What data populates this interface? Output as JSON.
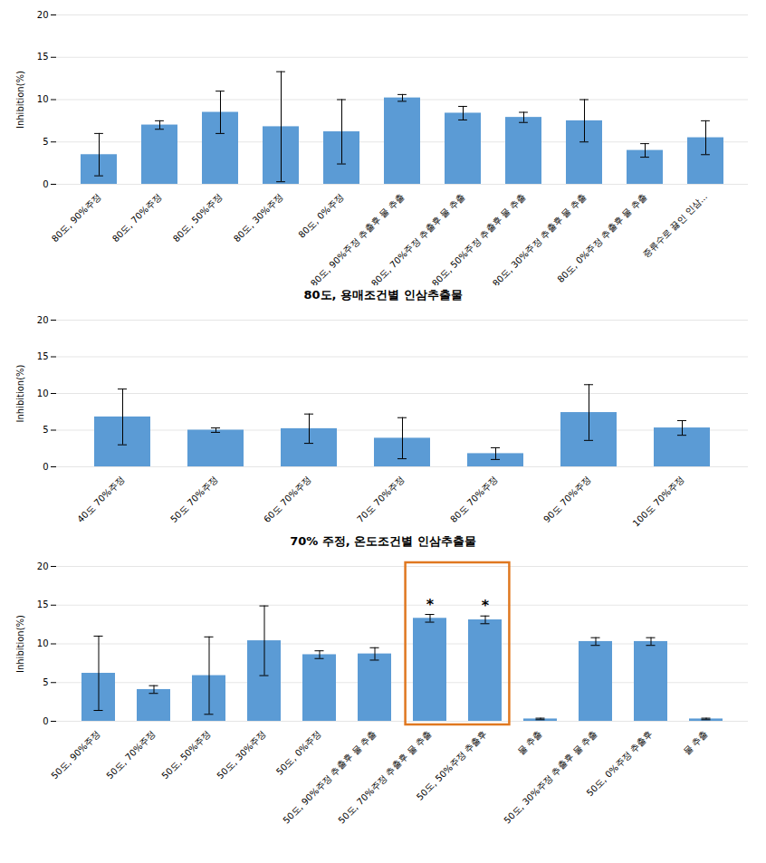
{
  "chart_data": [
    {
      "type": "bar",
      "title": "80도, 용매조건별 인삼추출물",
      "categories": [
        "80도, 90%주정",
        "80도, 70%주정",
        "80도, 50%주정",
        "80도, 30%주정",
        "80도, 0%주정",
        "80도, 90%주정 추출후 물 추출",
        "80도, 70%주정 추출후 물 추출",
        "80도, 50%주정 추출후 물 추출",
        "80도, 30%주정 추출후 물 추출",
        "80도, 0%주정 추출후 물 추출",
        "증류수로 끓인 인삼..."
      ],
      "values": [
        3.5,
        7.0,
        8.5,
        6.8,
        6.2,
        10.2,
        8.4,
        7.9,
        7.5,
        4.0,
        5.5
      ],
      "errors": [
        2.5,
        0.5,
        2.5,
        6.5,
        3.8,
        0.4,
        0.8,
        0.6,
        2.5,
        0.8,
        2.0
      ],
      "color": "#5B9BD5",
      "ylim": [
        0,
        20
      ],
      "yticks": [
        0,
        5,
        10,
        15,
        20
      ],
      "ylabel": "Inhibition(%)",
      "grid": true
    },
    {
      "type": "bar",
      "title": "70% 주정, 온도조건별 인삼추출물",
      "categories": [
        "40도 70%주정",
        "50도 70%주정",
        "60도 70%주정",
        "70도 70%주정",
        "80도 70%주정",
        "90도 70%주정",
        "100도 70%주정"
      ],
      "values": [
        6.8,
        5.0,
        5.2,
        3.9,
        1.8,
        7.4,
        5.3
      ],
      "errors": [
        3.8,
        0.3,
        2.0,
        2.8,
        0.8,
        3.8,
        1.0
      ],
      "color": "#5B9BD5",
      "ylim": [
        0,
        20
      ],
      "yticks": [
        0,
        5,
        10,
        15,
        20
      ],
      "ylabel": "Inhibition(%)",
      "grid": true
    },
    {
      "type": "bar",
      "categories": [
        "50도, 90%주정",
        "50도, 70%주정",
        "50도, 50%주정",
        "50도, 30%주정",
        "50도, 0%주정",
        "50도, 90%주정 추출후 물 추출",
        "50도, 70%주정 추출후 물 추출",
        "50도, 50%주정 추출후",
        "물 추출",
        "50도, 30%주정 추출후 물 추출",
        "50도, 0%주정 추출후",
        "물 추출"
      ],
      "values": [
        6.2,
        4.1,
        5.9,
        10.4,
        8.6,
        8.7,
        13.3,
        13.1,
        0.3,
        10.3,
        10.3,
        0.3
      ],
      "errors": [
        4.8,
        0.5,
        5.0,
        4.5,
        0.5,
        0.8,
        0.5,
        0.5,
        0.1,
        0.5,
        0.5,
        0.1
      ],
      "color": "#5B9BD5",
      "annotations": [
        {
          "text": "*",
          "index": 6
        },
        {
          "text": "*",
          "index": 7
        }
      ],
      "highlight": {
        "indices": [
          6,
          7
        ],
        "color": "#E07820"
      },
      "ylim": [
        0,
        20
      ],
      "yticks": [
        0,
        5,
        10,
        15,
        20
      ],
      "ylabel": "Inhibition(%)",
      "grid": true
    }
  ]
}
